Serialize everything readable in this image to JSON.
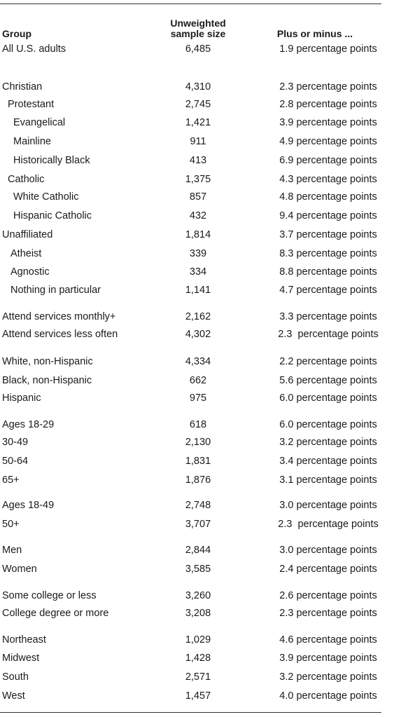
{
  "table": {
    "headers": {
      "group": "Group",
      "sample_line1": "Unweighted",
      "sample_line2": "sample size",
      "margin": "Plus or minus ..."
    },
    "rows": [
      {
        "group": "All U.S. adults",
        "indent": 0,
        "sample": "6,485",
        "margin": "1.9 percentage points"
      },
      {
        "group": "Christian",
        "indent": 0,
        "sample": "4,310",
        "margin": "2.3 percentage points"
      },
      {
        "group": "Protestant",
        "indent": 1,
        "sample": "2,745",
        "margin": "2.8 percentage points"
      },
      {
        "group": "Evangelical",
        "indent": 2,
        "sample": "1,421",
        "margin": "3.9 percentage points"
      },
      {
        "group": "Mainline",
        "indent": 2,
        "sample": "911",
        "margin": "4.9 percentage points"
      },
      {
        "group": "Historically Black",
        "indent": 2,
        "sample": "413",
        "margin": "6.9 percentage points"
      },
      {
        "group": "Catholic",
        "indent": 1,
        "sample": "1,375",
        "margin": "4.3 percentage points"
      },
      {
        "group": "White Catholic",
        "indent": 2,
        "sample": "857",
        "margin": "4.8 percentage points"
      },
      {
        "group": "Hispanic Catholic",
        "indent": 2,
        "sample": "432",
        "margin": "9.4 percentage points"
      },
      {
        "group": "Unaffiliated",
        "indent": 0,
        "sample": "1,814",
        "margin": "3.7 percentage points"
      },
      {
        "group": "Atheist",
        "indent": 1,
        "sample": "339",
        "margin": "8.3 percentage points"
      },
      {
        "group": "Agnostic",
        "indent": 1,
        "sample": "334",
        "margin": "8.8 percentage points"
      },
      {
        "group": "Nothing in particular",
        "indent": 1,
        "sample": "1,141",
        "margin": "4.7 percentage points"
      },
      {
        "group": "Attend services monthly+",
        "indent": 0,
        "sample": "2,162",
        "margin": "3.3 percentage points"
      },
      {
        "group": "Attend services less often",
        "indent": 0,
        "sample": "4,302",
        "margin": "2.3  percentage points"
      },
      {
        "group": "White, non-Hispanic",
        "indent": 0,
        "sample": "4,334",
        "margin": "2.2 percentage points"
      },
      {
        "group": "Black, non-Hispanic",
        "indent": 0,
        "sample": "662",
        "margin": "5.6 percentage points"
      },
      {
        "group": "Hispanic",
        "indent": 0,
        "sample": "975",
        "margin": "6.0 percentage points"
      },
      {
        "group": "Ages 18-29",
        "indent": 0,
        "sample": "618",
        "margin": "6.0 percentage points"
      },
      {
        "group": "30-49",
        "indent": 0,
        "sample": "2,130",
        "margin": "3.2 percentage points"
      },
      {
        "group": "50-64",
        "indent": 0,
        "sample": "1,831",
        "margin": "3.4 percentage points"
      },
      {
        "group": "65+",
        "indent": 0,
        "sample": "1,876",
        "margin": "3.1 percentage points"
      },
      {
        "group": "Ages 18-49",
        "indent": 0,
        "sample": "2,748",
        "margin": "3.0 percentage points"
      },
      {
        "group": "50+",
        "indent": 0,
        "sample": "3,707",
        "margin": "2.3  percentage points"
      },
      {
        "group": "Men",
        "indent": 0,
        "sample": "2,844",
        "margin": "3.0 percentage points"
      },
      {
        "group": "Women",
        "indent": 0,
        "sample": "3,585",
        "margin": "2.4 percentage points"
      },
      {
        "group": "Some college or less",
        "indent": 0,
        "sample": "3,260",
        "margin": "2.6 percentage points"
      },
      {
        "group": "College degree or more",
        "indent": 0,
        "sample": "3,208",
        "margin": "2.3 percentage points"
      },
      {
        "group": "Northeast",
        "indent": 0,
        "sample": "1,029",
        "margin": "4.6 percentage points"
      },
      {
        "group": "Midwest",
        "indent": 0,
        "sample": "1,428",
        "margin": "3.9 percentage points"
      },
      {
        "group": "South",
        "indent": 0,
        "sample": "2,571",
        "margin": "3.2 percentage points"
      },
      {
        "group": "West",
        "indent": 0,
        "sample": "1,457",
        "margin": "4.0 percentage points"
      }
    ]
  }
}
